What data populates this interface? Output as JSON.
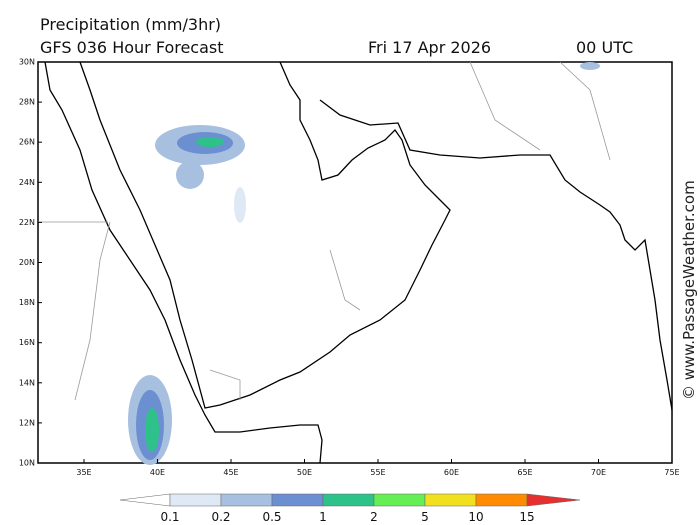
{
  "header": {
    "title": "Precipitation (mm/3hr)",
    "subtitle": "GFS 036 Hour Forecast",
    "date": "Fri 17 Apr 2026",
    "time": "00 UTC"
  },
  "map": {
    "lat_labels": [
      "30N",
      "28N",
      "26N",
      "24N",
      "22N",
      "20N",
      "18N",
      "16N",
      "14N",
      "12N",
      "10N"
    ],
    "lon_labels": [
      "35E",
      "40E",
      "45E",
      "50E",
      "55E",
      "60E",
      "65E",
      "70E",
      "75E"
    ]
  },
  "legend": {
    "labels": [
      "0.1",
      "0.2",
      "0.5",
      "1",
      "2",
      "5",
      "10",
      "15"
    ]
  },
  "credit": "© www.PassageWeather.com"
}
